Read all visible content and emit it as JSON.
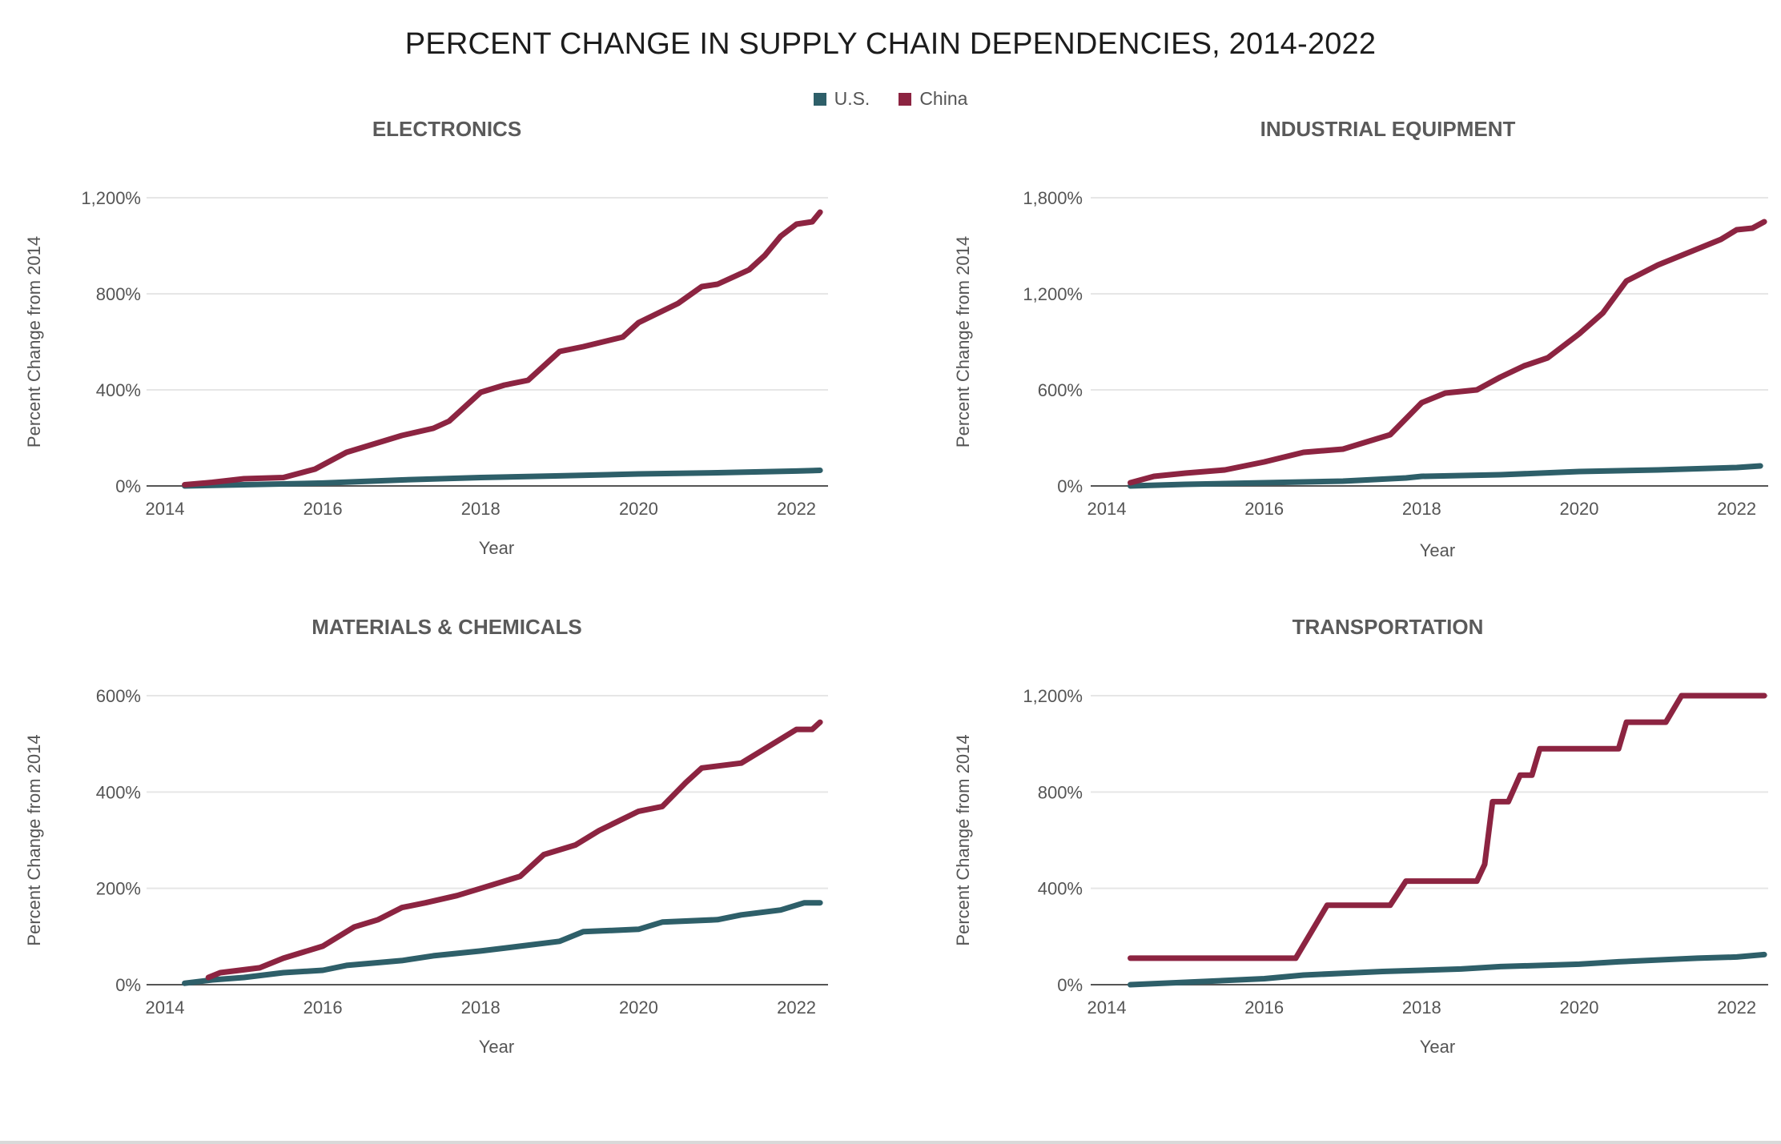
{
  "title": "PERCENT CHANGE IN SUPPLY CHAIN DEPENDENCIES, 2014-2022",
  "legend": [
    {
      "label": "U.S.",
      "color": "#2e5f69"
    },
    {
      "label": "China",
      "color": "#8c2441"
    }
  ],
  "chart_data": [
    {
      "type": "line",
      "title": "ELECTRONICS",
      "xlabel": "Year",
      "ylabel": "Percent Change from 2014",
      "xlim": [
        2014,
        2022.4
      ],
      "ylim": [
        0,
        1200
      ],
      "x_ticks": [
        {
          "value": 2014,
          "label": "2014"
        },
        {
          "value": 2016,
          "label": "2016"
        },
        {
          "value": 2018,
          "label": "2018"
        },
        {
          "value": 2020,
          "label": "2020"
        },
        {
          "value": 2022,
          "label": "2022"
        }
      ],
      "y_ticks": [
        {
          "value": 0,
          "label": "0%"
        },
        {
          "value": 400,
          "label": "400%"
        },
        {
          "value": 800,
          "label": "800%"
        },
        {
          "value": 1200,
          "label": "1,200%"
        }
      ],
      "series": [
        {
          "name": "U.S.",
          "color": "#2e5f69",
          "points": [
            [
              2014.25,
              0
            ],
            [
              2015,
              5
            ],
            [
              2016,
              12
            ],
            [
              2017,
              25
            ],
            [
              2018,
              35
            ],
            [
              2019,
              42
            ],
            [
              2020,
              50
            ],
            [
              2021,
              55
            ],
            [
              2022,
              62
            ],
            [
              2022.3,
              65
            ]
          ]
        },
        {
          "name": "China",
          "color": "#8c2441",
          "points": [
            [
              2014.25,
              5
            ],
            [
              2014.6,
              15
            ],
            [
              2015,
              30
            ],
            [
              2015.5,
              35
            ],
            [
              2015.9,
              70
            ],
            [
              2016.3,
              140
            ],
            [
              2016.7,
              180
            ],
            [
              2017,
              210
            ],
            [
              2017.4,
              240
            ],
            [
              2017.6,
              270
            ],
            [
              2018,
              390
            ],
            [
              2018.3,
              420
            ],
            [
              2018.6,
              440
            ],
            [
              2019,
              560
            ],
            [
              2019.3,
              580
            ],
            [
              2019.8,
              620
            ],
            [
              2020,
              680
            ],
            [
              2020.5,
              760
            ],
            [
              2020.8,
              830
            ],
            [
              2021,
              840
            ],
            [
              2021.4,
              900
            ],
            [
              2021.6,
              960
            ],
            [
              2021.8,
              1040
            ],
            [
              2022,
              1090
            ],
            [
              2022.2,
              1100
            ],
            [
              2022.3,
              1140
            ]
          ]
        }
      ]
    },
    {
      "type": "line",
      "title": "INDUSTRIAL EQUIPMENT",
      "xlabel": "Year",
      "ylabel": "Percent Change from 2014",
      "xlim": [
        2014,
        2022.4
      ],
      "ylim": [
        0,
        1800
      ],
      "x_ticks": [
        {
          "value": 2014,
          "label": "2014"
        },
        {
          "value": 2016,
          "label": "2016"
        },
        {
          "value": 2018,
          "label": "2018"
        },
        {
          "value": 2020,
          "label": "2020"
        },
        {
          "value": 2022,
          "label": "2022"
        }
      ],
      "y_ticks": [
        {
          "value": 0,
          "label": "0%"
        },
        {
          "value": 600,
          "label": "600%"
        },
        {
          "value": 1200,
          "label": "1,200%"
        },
        {
          "value": 1800,
          "label": "1,800%"
        }
      ],
      "series": [
        {
          "name": "U.S.",
          "color": "#2e5f69",
          "points": [
            [
              2014.3,
              0
            ],
            [
              2015,
              10
            ],
            [
              2016,
              20
            ],
            [
              2017,
              30
            ],
            [
              2017.8,
              50
            ],
            [
              2018,
              60
            ],
            [
              2019,
              70
            ],
            [
              2020,
              90
            ],
            [
              2021,
              100
            ],
            [
              2022,
              115
            ],
            [
              2022.3,
              125
            ]
          ]
        },
        {
          "name": "China",
          "color": "#8c2441",
          "points": [
            [
              2014.3,
              20
            ],
            [
              2014.6,
              60
            ],
            [
              2015,
              80
            ],
            [
              2015.5,
              100
            ],
            [
              2016,
              150
            ],
            [
              2016.5,
              210
            ],
            [
              2017,
              230
            ],
            [
              2017.6,
              320
            ],
            [
              2018,
              520
            ],
            [
              2018.3,
              580
            ],
            [
              2018.7,
              600
            ],
            [
              2019,
              680
            ],
            [
              2019.3,
              750
            ],
            [
              2019.6,
              800
            ],
            [
              2020,
              950
            ],
            [
              2020.3,
              1080
            ],
            [
              2020.6,
              1280
            ],
            [
              2021,
              1380
            ],
            [
              2021.4,
              1460
            ],
            [
              2021.8,
              1540
            ],
            [
              2022,
              1600
            ],
            [
              2022.2,
              1610
            ],
            [
              2022.35,
              1650
            ]
          ]
        }
      ]
    },
    {
      "type": "line",
      "title": "MATERIALS & CHEMICALS",
      "xlabel": "Year",
      "ylabel": "Percent Change from 2014",
      "xlim": [
        2014,
        2022.4
      ],
      "ylim": [
        0,
        600
      ],
      "x_ticks": [
        {
          "value": 2014,
          "label": "2014"
        },
        {
          "value": 2016,
          "label": "2016"
        },
        {
          "value": 2018,
          "label": "2018"
        },
        {
          "value": 2020,
          "label": "2020"
        },
        {
          "value": 2022,
          "label": "2022"
        }
      ],
      "y_ticks": [
        {
          "value": 0,
          "label": "0%"
        },
        {
          "value": 200,
          "label": "200%"
        },
        {
          "value": 400,
          "label": "400%"
        },
        {
          "value": 600,
          "label": "600%"
        }
      ],
      "series": [
        {
          "name": "U.S.",
          "color": "#2e5f69",
          "points": [
            [
              2014.25,
              3
            ],
            [
              2014.6,
              10
            ],
            [
              2015,
              15
            ],
            [
              2015.5,
              25
            ],
            [
              2016,
              30
            ],
            [
              2016.3,
              40
            ],
            [
              2017,
              50
            ],
            [
              2017.4,
              60
            ],
            [
              2018,
              70
            ],
            [
              2018.5,
              80
            ],
            [
              2019,
              90
            ],
            [
              2019.3,
              110
            ],
            [
              2020,
              115
            ],
            [
              2020.3,
              130
            ],
            [
              2021,
              135
            ],
            [
              2021.3,
              145
            ],
            [
              2021.8,
              155
            ],
            [
              2022.1,
              170
            ],
            [
              2022.3,
              170
            ]
          ]
        },
        {
          "name": "China",
          "color": "#8c2441",
          "points": [
            [
              2014.55,
              15
            ],
            [
              2014.7,
              25
            ],
            [
              2015.2,
              35
            ],
            [
              2015.5,
              55
            ],
            [
              2016,
              80
            ],
            [
              2016.4,
              120
            ],
            [
              2016.7,
              135
            ],
            [
              2017,
              160
            ],
            [
              2017.3,
              170
            ],
            [
              2017.7,
              185
            ],
            [
              2018,
              200
            ],
            [
              2018.5,
              225
            ],
            [
              2018.8,
              270
            ],
            [
              2019.2,
              290
            ],
            [
              2019.5,
              320
            ],
            [
              2020,
              360
            ],
            [
              2020.3,
              370
            ],
            [
              2020.6,
              420
            ],
            [
              2020.8,
              450
            ],
            [
              2021.3,
              460
            ],
            [
              2021.7,
              500
            ],
            [
              2022,
              530
            ],
            [
              2022.2,
              530
            ],
            [
              2022.3,
              545
            ]
          ]
        }
      ]
    },
    {
      "type": "line",
      "title": "TRANSPORTATION",
      "xlabel": "Year",
      "ylabel": "Percent Change from 2014",
      "xlim": [
        2014,
        2022.4
      ],
      "ylim": [
        0,
        1200
      ],
      "x_ticks": [
        {
          "value": 2014,
          "label": "2014"
        },
        {
          "value": 2016,
          "label": "2016"
        },
        {
          "value": 2018,
          "label": "2018"
        },
        {
          "value": 2020,
          "label": "2020"
        },
        {
          "value": 2022,
          "label": "2022"
        }
      ],
      "y_ticks": [
        {
          "value": 0,
          "label": "0%"
        },
        {
          "value": 400,
          "label": "400%"
        },
        {
          "value": 800,
          "label": "800%"
        },
        {
          "value": 1200,
          "label": "1,200%"
        }
      ],
      "series": [
        {
          "name": "U.S.",
          "color": "#2e5f69",
          "points": [
            [
              2014.3,
              0
            ],
            [
              2015,
              10
            ],
            [
              2016,
              25
            ],
            [
              2016.5,
              40
            ],
            [
              2017.5,
              55
            ],
            [
              2018.5,
              65
            ],
            [
              2019,
              75
            ],
            [
              2020,
              85
            ],
            [
              2020.5,
              95
            ],
            [
              2021.5,
              110
            ],
            [
              2022,
              115
            ],
            [
              2022.35,
              125
            ]
          ]
        },
        {
          "name": "China",
          "color": "#8c2441",
          "points": [
            [
              2014.3,
              110
            ],
            [
              2016.4,
              110
            ],
            [
              2016.6,
              220
            ],
            [
              2016.8,
              330
            ],
            [
              2017.6,
              330
            ],
            [
              2017.8,
              430
            ],
            [
              2018.7,
              430
            ],
            [
              2018.8,
              500
            ],
            [
              2018.9,
              760
            ],
            [
              2019.1,
              760
            ],
            [
              2019.25,
              870
            ],
            [
              2019.4,
              870
            ],
            [
              2019.5,
              980
            ],
            [
              2020.5,
              980
            ],
            [
              2020.6,
              1090
            ],
            [
              2021.1,
              1090
            ],
            [
              2021.3,
              1200
            ],
            [
              2022.35,
              1200
            ]
          ]
        }
      ]
    }
  ]
}
